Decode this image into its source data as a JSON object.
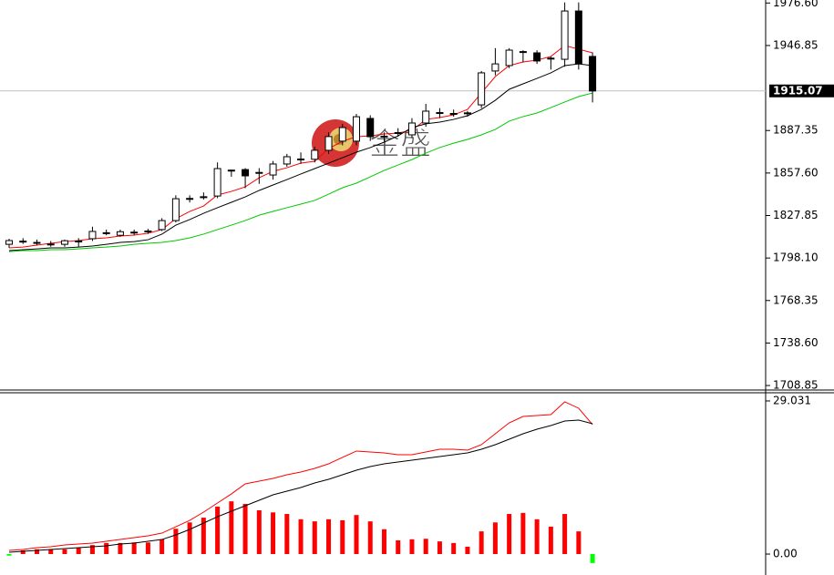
{
  "chart_data": [
    {
      "type": "candlestick",
      "categories": [
        null,
        null,
        null,
        null,
        null,
        null,
        null,
        null,
        null,
        null,
        null,
        null,
        null,
        null,
        null,
        null,
        null,
        null,
        null,
        null,
        null,
        null,
        null,
        null,
        null,
        null,
        null,
        null,
        null,
        null,
        null,
        null,
        null,
        null,
        null,
        null,
        null,
        null,
        null,
        null,
        null,
        null,
        null
      ],
      "open": [
        1807.7,
        1809.6,
        1809,
        1807.6,
        1807.7,
        1809.8,
        1811.6,
        1815.4,
        1814,
        1815.8,
        1816.5,
        1818,
        1824.3,
        1839.2,
        1840.5,
        1841.5,
        1859.6,
        1860,
        1857.6,
        1856.2,
        1863.9,
        1867,
        1867.2,
        1873.5,
        1879.9,
        1879.9,
        1895.8,
        1883,
        1885.6,
        1884.3,
        1892.6,
        1899.5,
        1899,
        1899.5,
        1905.3,
        1929,
        1932.8,
        1942.6,
        1941.7,
        1938,
        1937.2,
        1971,
        1939.2
      ],
      "high": [
        1811.6,
        1812,
        1811,
        1810,
        1811,
        1812,
        1820,
        1818,
        1818,
        1818,
        1818.5,
        1826,
        1842,
        1842,
        1844,
        1865,
        1860,
        1861,
        1861,
        1866,
        1871,
        1872,
        1876,
        1886,
        1892,
        1899,
        1898,
        1886,
        1889,
        1896,
        1906,
        1903,
        1902,
        1901,
        1929,
        1945,
        1945,
        1943.5,
        1943.5,
        1939,
        1977,
        1977,
        1942
      ],
      "low": [
        1805.2,
        1808,
        1807,
        1806,
        1806,
        1806,
        1810,
        1814,
        1813,
        1814,
        1815,
        1817,
        1823,
        1837,
        1839,
        1840,
        1855,
        1847,
        1850,
        1853,
        1862,
        1864,
        1865,
        1871,
        1877,
        1877,
        1880,
        1880,
        1883,
        1882,
        1890,
        1896,
        1897,
        1897,
        1903,
        1926,
        1931,
        1935,
        1934,
        1930,
        1932,
        1930,
        1907
      ],
      "close": [
        1810.3,
        1809.9,
        1808.8,
        1807.9,
        1810.2,
        1810,
        1816.7,
        1815.8,
        1816.5,
        1816.2,
        1817,
        1824.3,
        1839.6,
        1839.8,
        1841,
        1860.7,
        1859.4,
        1855.6,
        1858,
        1863.9,
        1869,
        1867.4,
        1873.5,
        1883.1,
        1889.4,
        1897,
        1883,
        1883.4,
        1885.9,
        1892.6,
        1900.9,
        1899.9,
        1899.3,
        1899.7,
        1927.7,
        1934,
        1943.6,
        1942.3,
        1936,
        1937.7,
        1971,
        1934,
        1915
      ],
      "up_color": "#ffffff",
      "down_color": "#000000",
      "series": [
        {
          "color": "#ff0000",
          "values": [
            1805.2,
            1805.8,
            1807.1,
            1808.4,
            1809.6,
            1810.3,
            1811.6,
            1812.2,
            1813.5,
            1814.1,
            1815.4,
            1818,
            1825.6,
            1830.7,
            1834.5,
            1842.2,
            1844.7,
            1847.9,
            1854.3,
            1858.8,
            1861.3,
            1864.5,
            1865.8,
            1874.7,
            1879.8,
            1883,
            1883.6,
            1884.9,
            1885.6,
            1887.5,
            1895.1,
            1896.4,
            1898.3,
            1902.1,
            1913.6,
            1925.1,
            1932.8,
            1935.3,
            1936.6,
            1939.2,
            1946.8,
            1944.3,
            1941.7
          ]
        },
        {
          "color": "#000000",
          "values": [
            1803.3,
            1803.9,
            1804.5,
            1805.2,
            1805.2,
            1805.8,
            1806.5,
            1807.7,
            1809,
            1809.6,
            1810.9,
            1814.8,
            1821.1,
            1825,
            1829.4,
            1833.3,
            1837.1,
            1840.9,
            1845.4,
            1849.2,
            1853,
            1856.9,
            1860.7,
            1864.5,
            1868.3,
            1872.2,
            1875.4,
            1879.2,
            1883.6,
            1889.4,
            1892,
            1893.2,
            1895.1,
            1897.7,
            1902.1,
            1908.5,
            1916.2,
            1920,
            1923.8,
            1927.7,
            1932.8,
            1934,
            1932.8
          ]
        },
        {
          "color": "#00c800",
          "values": [
            1802.6,
            1803.3,
            1803.3,
            1803.9,
            1803.9,
            1804.5,
            1805.2,
            1805.8,
            1806.5,
            1807.7,
            1808.4,
            1809,
            1810.3,
            1812.2,
            1814.8,
            1818,
            1821.1,
            1824.3,
            1828.1,
            1830.7,
            1833.3,
            1835.8,
            1838.4,
            1842.8,
            1847.3,
            1850.5,
            1854.9,
            1859.4,
            1863.2,
            1867,
            1871.5,
            1875.4,
            1878.5,
            1881.1,
            1884.3,
            1888.1,
            1893.9,
            1897.1,
            1899.6,
            1903.4,
            1907.3,
            1911.1,
            1913.6
          ]
        }
      ],
      "ylim": [
        1705.7,
        1978.7
      ],
      "yticks": [
        {
          "value": 1976.6,
          "label": "1976.60"
        },
        {
          "value": 1946.85,
          "label": "1946.85"
        },
        {
          "value": 1887.35,
          "label": "1887.35"
        },
        {
          "value": 1857.6,
          "label": "1857.60"
        },
        {
          "value": 1827.85,
          "label": "1827.85"
        },
        {
          "value": 1798.1,
          "label": "1798.10"
        },
        {
          "value": 1768.35,
          "label": "1768.35"
        },
        {
          "value": 1738.6,
          "label": "1738.60"
        },
        {
          "value": 1708.85,
          "label": "1708.85"
        }
      ],
      "last_price": 1915.07,
      "watermark": "金盛"
    },
    {
      "type": "macd",
      "histogram": [
        -0.3,
        0.7,
        0.9,
        0.9,
        0.9,
        1.2,
        1.7,
        2.1,
        2.1,
        2.2,
        2.2,
        2.8,
        4.8,
        6,
        6.9,
        9,
        10,
        9.5,
        8.3,
        7.9,
        7.6,
        6.6,
        6.2,
        6.6,
        6.4,
        7.4,
        6.2,
        4.7,
        2.6,
        2.8,
        2.9,
        2.4,
        2.1,
        1.4,
        4.3,
        6,
        7.6,
        7.8,
        6.6,
        5.2,
        7.6,
        4.3,
        -1.7
      ],
      "up_color": "#ff0000",
      "down_color": "#00ff00",
      "series": [
        {
          "color": "#ff0000",
          "values": [
            0.69,
            0.86,
            1.21,
            1.38,
            1.73,
            1.9,
            2.07,
            2.42,
            2.76,
            3.11,
            3.46,
            3.97,
            5.18,
            6.39,
            7.95,
            9.68,
            11.4,
            13.31,
            13.82,
            14.34,
            15.03,
            15.55,
            16.24,
            17.11,
            18.32,
            19.53,
            19.35,
            19.18,
            18.84,
            18.84,
            19.35,
            19.87,
            19.87,
            19.7,
            20.74,
            22.81,
            24.88,
            26.09,
            26.27,
            26.44,
            28.86,
            27.65,
            24.54
          ]
        },
        {
          "color": "#000000",
          "values": [
            0.35,
            0.52,
            0.69,
            0.86,
            1.04,
            1.21,
            1.38,
            1.56,
            1.9,
            2.07,
            2.42,
            2.76,
            3.63,
            4.67,
            5.88,
            7.08,
            8.12,
            9.16,
            10.2,
            11.23,
            11.92,
            12.61,
            13.48,
            14.17,
            15.03,
            15.9,
            16.59,
            17.11,
            17.45,
            17.8,
            18.14,
            18.49,
            18.84,
            19.18,
            19.87,
            20.74,
            21.77,
            22.81,
            23.67,
            24.36,
            25.23,
            25.4,
            24.71
          ]
        }
      ],
      "ylim": [
        -3.97,
        30.41
      ],
      "yticks": [
        29.031,
        {
          "value": 0,
          "label": "0.00"
        }
      ]
    }
  ]
}
